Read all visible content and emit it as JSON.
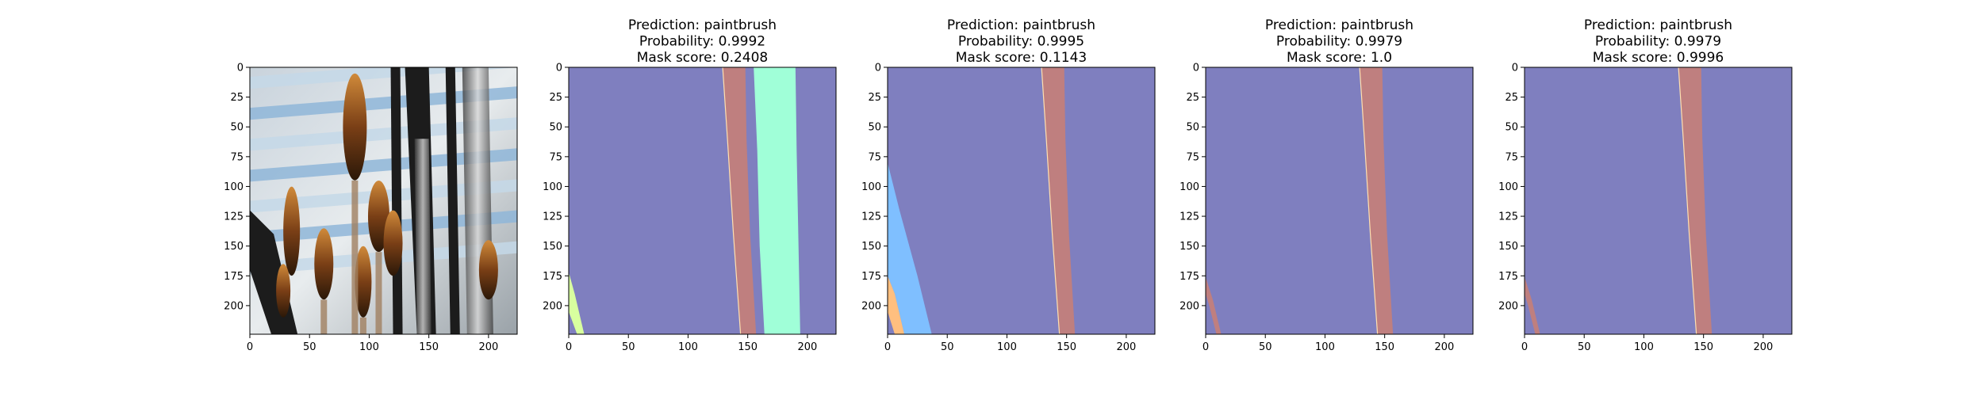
{
  "colors": {
    "background": "#7f7fbf",
    "brush_handle": "#bf7f7f",
    "segment_mint": "#a0ffd8",
    "segment_blue": "#7fbfff",
    "segment_yellow_green": "#d8ff9f",
    "segment_orange": "#ffbf7f",
    "edge_cream": "#ffe0b0"
  },
  "chart_data": [
    {
      "type": "image",
      "content": "photo",
      "title": [],
      "xlim": [
        0,
        224
      ],
      "ylim": [
        224,
        0
      ],
      "xticks": [
        0,
        50,
        100,
        150,
        200
      ],
      "yticks": [
        0,
        25,
        50,
        75,
        100,
        125,
        150,
        175,
        200
      ]
    },
    {
      "type": "heatmap",
      "title": [
        "Prediction: paintbrush",
        "Probability: 0.9992",
        "Mask score: 0.2408"
      ],
      "xlim": [
        0,
        224
      ],
      "ylim": [
        224,
        0
      ],
      "xticks": [
        0,
        50,
        100,
        150,
        200
      ],
      "yticks": [
        0,
        25,
        50,
        75,
        100,
        125,
        150,
        175,
        200
      ],
      "regions": [
        {
          "color": "brush_handle",
          "points": [
            [
              129,
              0
            ],
            [
              148,
              0
            ],
            [
              149,
              60
            ],
            [
              152,
              140
            ],
            [
              157,
              224
            ],
            [
              144,
              224
            ],
            [
              138,
              140
            ],
            [
              133,
              60
            ]
          ]
        },
        {
          "color": "segment_mint",
          "points": [
            [
              155,
              0
            ],
            [
              190,
              0
            ],
            [
              191,
              70
            ],
            [
              194,
              224
            ],
            [
              164,
              224
            ],
            [
              160,
              150
            ],
            [
              158,
              70
            ]
          ]
        },
        {
          "color": "segment_yellow_green",
          "points": [
            [
              0,
              172
            ],
            [
              5,
              190
            ],
            [
              13,
              224
            ],
            [
              7,
              224
            ],
            [
              0,
              205
            ]
          ]
        }
      ]
    },
    {
      "type": "heatmap",
      "title": [
        "Prediction: paintbrush",
        "Probability: 0.9995",
        "Mask score: 0.1143"
      ],
      "xlim": [
        0,
        224
      ],
      "ylim": [
        224,
        0
      ],
      "xticks": [
        0,
        50,
        100,
        150,
        200
      ],
      "yticks": [
        0,
        25,
        50,
        75,
        100,
        125,
        150,
        175,
        200
      ],
      "regions": [
        {
          "color": "brush_handle",
          "points": [
            [
              129,
              0
            ],
            [
              148,
              0
            ],
            [
              149,
              60
            ],
            [
              152,
              140
            ],
            [
              157,
              224
            ],
            [
              144,
              224
            ],
            [
              138,
              140
            ],
            [
              133,
              60
            ]
          ]
        },
        {
          "color": "segment_blue",
          "points": [
            [
              0,
              80
            ],
            [
              10,
              120
            ],
            [
              25,
              175
            ],
            [
              37,
              224
            ],
            [
              14,
              224
            ],
            [
              6,
              190
            ],
            [
              0,
              175
            ]
          ]
        },
        {
          "color": "segment_orange",
          "points": [
            [
              0,
              175
            ],
            [
              6,
              190
            ],
            [
              14,
              224
            ],
            [
              6,
              224
            ],
            [
              0,
              205
            ]
          ]
        }
      ]
    },
    {
      "type": "heatmap",
      "title": [
        "Prediction: paintbrush",
        "Probability: 0.9979",
        "Mask score: 1.0"
      ],
      "xlim": [
        0,
        224
      ],
      "ylim": [
        224,
        0
      ],
      "xticks": [
        0,
        50,
        100,
        150,
        200
      ],
      "yticks": [
        0,
        25,
        50,
        75,
        100,
        125,
        150,
        175,
        200
      ],
      "regions": [
        {
          "color": "brush_handle",
          "points": [
            [
              129,
              0
            ],
            [
              148,
              0
            ],
            [
              149,
              60
            ],
            [
              152,
              140
            ],
            [
              157,
              224
            ],
            [
              144,
              224
            ],
            [
              138,
              140
            ],
            [
              133,
              60
            ]
          ]
        },
        {
          "color": "brush_handle",
          "points": [
            [
              0,
              176
            ],
            [
              6,
              195
            ],
            [
              13,
              224
            ],
            [
              9,
              224
            ],
            [
              3,
              200
            ],
            [
              0,
              190
            ]
          ]
        }
      ]
    },
    {
      "type": "heatmap",
      "title": [
        "Prediction: paintbrush",
        "Probability: 0.9979",
        "Mask score: 0.9996"
      ],
      "xlim": [
        0,
        224
      ],
      "ylim": [
        224,
        0
      ],
      "xticks": [
        0,
        50,
        100,
        150,
        200
      ],
      "yticks": [
        0,
        25,
        50,
        75,
        100,
        125,
        150,
        175,
        200
      ],
      "regions": [
        {
          "color": "brush_handle",
          "points": [
            [
              129,
              0
            ],
            [
              148,
              0
            ],
            [
              149,
              60
            ],
            [
              152,
              140
            ],
            [
              157,
              224
            ],
            [
              144,
              224
            ],
            [
              138,
              140
            ],
            [
              133,
              60
            ]
          ]
        },
        {
          "color": "brush_handle",
          "points": [
            [
              0,
              176
            ],
            [
              6,
              195
            ],
            [
              13,
              224
            ],
            [
              9,
              224
            ],
            [
              3,
              200
            ],
            [
              0,
              190
            ]
          ]
        }
      ]
    }
  ]
}
